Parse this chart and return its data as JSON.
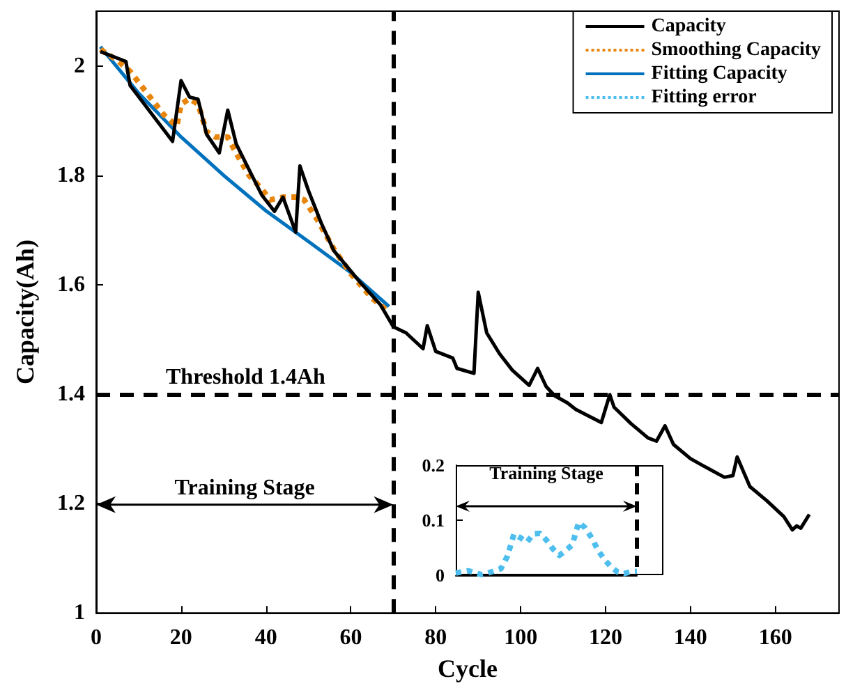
{
  "chart_data": [
    {
      "type": "line",
      "xlabel": "Cycle",
      "ylabel": "Capacity(Ah)",
      "xlim": [
        0,
        175
      ],
      "ylim": [
        1,
        2.1
      ],
      "xticks": [
        0,
        20,
        40,
        60,
        80,
        100,
        120,
        140,
        160
      ],
      "yticks": [
        1,
        1.2,
        1.4,
        1.6,
        1.8,
        2
      ],
      "grid": false,
      "legend": "top right",
      "marker": "none",
      "series": [
        {
          "name": "Capacity",
          "color": "#000000",
          "line_style": "solid",
          "x": [
            1,
            7,
            8,
            18,
            20,
            22,
            24,
            26,
            29,
            31,
            33,
            39,
            42,
            44,
            47,
            48,
            50,
            53,
            56,
            62,
            67,
            70,
            73,
            77,
            78,
            80,
            84,
            85,
            89,
            90,
            92,
            95,
            98,
            102,
            104,
            106,
            108,
            111,
            113,
            119,
            121,
            122,
            126,
            130,
            132,
            134,
            136,
            140,
            143,
            148,
            150,
            151,
            154,
            158,
            162,
            164,
            165,
            166,
            168
          ],
          "values": [
            2.026,
            2.008,
            1.964,
            1.862,
            1.973,
            1.943,
            1.939,
            1.875,
            1.841,
            1.919,
            1.857,
            1.764,
            1.734,
            1.76,
            1.696,
            1.817,
            1.772,
            1.713,
            1.662,
            1.606,
            1.563,
            1.523,
            1.512,
            1.483,
            1.525,
            1.478,
            1.466,
            1.447,
            1.438,
            1.586,
            1.512,
            1.474,
            1.444,
            1.416,
            1.447,
            1.414,
            1.397,
            1.384,
            1.372,
            1.348,
            1.399,
            1.376,
            1.346,
            1.32,
            1.314,
            1.342,
            1.308,
            1.282,
            1.269,
            1.248,
            1.251,
            1.285,
            1.231,
            1.205,
            1.176,
            1.152,
            1.159,
            1.155,
            1.18
          ]
        },
        {
          "name": "Smoothing Capacity",
          "color": "#e8850c",
          "line_style": "dotted",
          "x": [
            1,
            5,
            8,
            12,
            16,
            19,
            20,
            22,
            24,
            26,
            28,
            31,
            33,
            36,
            39,
            41,
            44,
            47,
            49,
            52,
            56,
            60,
            65,
            69
          ],
          "values": [
            2.03,
            2.01,
            1.99,
            1.95,
            1.91,
            1.89,
            1.93,
            1.94,
            1.93,
            1.88,
            1.87,
            1.87,
            1.84,
            1.8,
            1.775,
            1.755,
            1.76,
            1.76,
            1.755,
            1.72,
            1.665,
            1.62,
            1.575,
            1.55
          ]
        },
        {
          "name": "Fitting Capacity",
          "color": "#0072bd",
          "line_style": "solid",
          "x": [
            1,
            10,
            20,
            30,
            40,
            50,
            60,
            69
          ],
          "values": [
            2.035,
            1.95,
            1.87,
            1.8,
            1.735,
            1.679,
            1.622,
            1.56
          ]
        }
      ],
      "ref_lines": [
        {
          "axis": "y",
          "value": 1.4,
          "label": "Threshold 1.4Ah",
          "color": "#000000",
          "line_style": "dashed"
        },
        {
          "axis": "x",
          "value": 70,
          "label": null,
          "color": "#000000",
          "line_style": "dashed"
        }
      ],
      "annotations": [
        "Training Stage"
      ]
    },
    {
      "type": "line",
      "categories": [
        null,
        null,
        null,
        null,
        null,
        null,
        null,
        null,
        null,
        null,
        null,
        null,
        null,
        null,
        null,
        null,
        null,
        null,
        null,
        null,
        null,
        null,
        null,
        null,
        null,
        null,
        null,
        null,
        null
      ],
      "ylim": [
        0,
        0.2
      ],
      "yticks": [
        0,
        0.1,
        0.2
      ],
      "tick_labels": "y",
      "grid": false,
      "legend": false,
      "marker": "none",
      "series": [
        {
          "name": "Fitting error",
          "color": "#4dbeee",
          "line_style": "dotted",
          "values": [
            0.004,
            0.006,
            0.008,
            0.004,
            0.001,
            0.004,
            0.008,
            0.012,
            0.035,
            0.075,
            0.068,
            0.06,
            0.075,
            0.076,
            0.064,
            0.048,
            0.036,
            0.045,
            0.055,
            0.096,
            0.086,
            0.068,
            0.045,
            0.028,
            0.015,
            0.006,
            0.003,
            0.006,
            0.007
          ]
        }
      ],
      "annotations": [
        "Training Stage"
      ]
    }
  ]
}
